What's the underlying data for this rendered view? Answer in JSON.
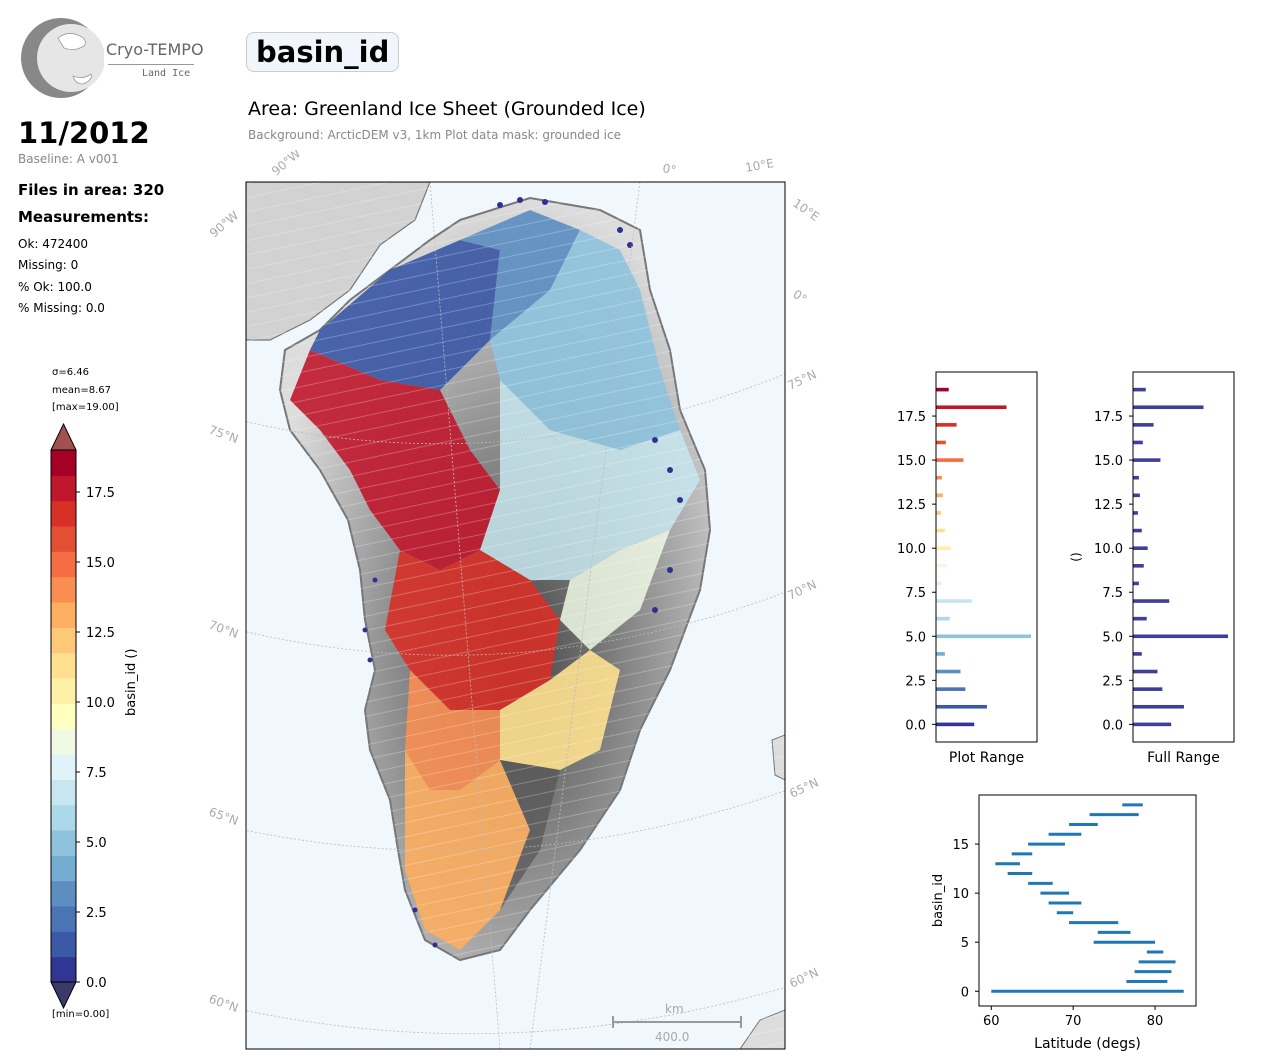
{
  "header": {
    "logo_text": "Cryo-TEMPO",
    "logo_sub": "Land Ice",
    "title": "basin_id",
    "area": "Area: Greenland Ice Sheet (Grounded Ice)",
    "background_note": "Background: ArcticDEM v3, 1km   Plot data mask: grounded ice"
  },
  "stats": {
    "period": "11/2012",
    "baseline": "Baseline: A v001",
    "files": "Files in area: 320",
    "measurements_label": "Measurements:",
    "ok": "Ok: 472400",
    "missing": "Missing: 0",
    "pct_ok": "% Ok: 100.0",
    "pct_missing": "% Missing: 0.0"
  },
  "colorbar": {
    "sigma": "σ=6.46",
    "mean": "mean=8.67",
    "max": "[max=19.00]",
    "min": "[min=0.00]",
    "label": "basin_id ()",
    "ticks": [
      "0.0",
      "2.5",
      "5.0",
      "7.5",
      "10.0",
      "12.5",
      "15.0",
      "17.5"
    ],
    "colors": [
      "#313695",
      "#3c59a6",
      "#4a74b4",
      "#5d8ec1",
      "#74add1",
      "#8fc3dd",
      "#abd9e9",
      "#c8e6f0",
      "#e0f3f8",
      "#eff9e4",
      "#ffffbf",
      "#fef0a7",
      "#fee090",
      "#fdc877",
      "#fdae61",
      "#f88e52",
      "#f46d43",
      "#e34f33",
      "#d73027",
      "#c0172c",
      "#a50026"
    ],
    "over_color": "#a25050",
    "under_color": "#3a3a6a"
  },
  "map": {
    "lat_labels": [
      "75°N",
      "70°N",
      "65°N",
      "60°N"
    ],
    "right_labels": [
      "75°N",
      "70°N",
      "65°N",
      "60°N"
    ],
    "top_labels": [
      "90°W",
      "90°W",
      "0°",
      "10°E"
    ],
    "side_labels": [
      "10°E",
      "0°"
    ],
    "scale_unit": "km",
    "scale_value": "400.0"
  },
  "chart_data": [
    {
      "type": "bar",
      "orientation": "horizontal",
      "title": "",
      "xlabel": "Plot Range",
      "ylabel": "",
      "ylim": [
        -1,
        20
      ],
      "ticks": [
        "0.0",
        "2.5",
        "5.0",
        "7.5",
        "10.0",
        "12.5",
        "15.0",
        "17.5"
      ],
      "categories": [
        0,
        1,
        2,
        3,
        4,
        5,
        6,
        7,
        8,
        9,
        10,
        11,
        12,
        13,
        14,
        15,
        16,
        17,
        18,
        19
      ],
      "values": [
        39,
        52,
        30,
        25,
        9,
        97,
        14,
        37,
        6,
        11,
        15,
        9,
        5,
        7,
        6,
        28,
        10,
        21,
        72,
        13
      ]
    },
    {
      "type": "bar",
      "orientation": "horizontal",
      "title": "",
      "xlabel": "Full Range",
      "ylabel": "()",
      "ylim": [
        -1,
        20
      ],
      "ticks": [
        "0.0",
        "2.5",
        "5.0",
        "7.5",
        "10.0",
        "12.5",
        "15.0",
        "17.5"
      ],
      "categories": [
        0,
        1,
        2,
        3,
        4,
        5,
        6,
        7,
        8,
        9,
        10,
        11,
        12,
        13,
        14,
        15,
        16,
        17,
        18,
        19
      ],
      "values": [
        39,
        52,
        30,
        25,
        9,
        97,
        14,
        37,
        6,
        11,
        15,
        9,
        5,
        7,
        6,
        28,
        10,
        21,
        72,
        13
      ]
    },
    {
      "type": "scatter",
      "title": "",
      "xlabel": "Latitude (degs)",
      "ylabel": "basin_id",
      "xlim": [
        58.5,
        85
      ],
      "ylim": [
        -1.5,
        20
      ],
      "xticks": [
        "60",
        "70",
        "80"
      ],
      "yticks": [
        "0",
        "5",
        "10",
        "15"
      ],
      "ranges": [
        {
          "id": 0,
          "lat_min": 60,
          "lat_max": 83.5
        },
        {
          "id": 1,
          "lat_min": 76.5,
          "lat_max": 81.5
        },
        {
          "id": 2,
          "lat_min": 77.5,
          "lat_max": 82
        },
        {
          "id": 3,
          "lat_min": 78,
          "lat_max": 82.5
        },
        {
          "id": 4,
          "lat_min": 79,
          "lat_max": 81
        },
        {
          "id": 5,
          "lat_min": 72.5,
          "lat_max": 80
        },
        {
          "id": 6,
          "lat_min": 73,
          "lat_max": 77
        },
        {
          "id": 7,
          "lat_min": 69.5,
          "lat_max": 75.5
        },
        {
          "id": 8,
          "lat_min": 68,
          "lat_max": 70
        },
        {
          "id": 9,
          "lat_min": 67,
          "lat_max": 71
        },
        {
          "id": 10,
          "lat_min": 66,
          "lat_max": 69.5
        },
        {
          "id": 11,
          "lat_min": 64.5,
          "lat_max": 67.5
        },
        {
          "id": 12,
          "lat_min": 62,
          "lat_max": 65
        },
        {
          "id": 13,
          "lat_min": 60.5,
          "lat_max": 63.5
        },
        {
          "id": 14,
          "lat_min": 62.5,
          "lat_max": 65
        },
        {
          "id": 15,
          "lat_min": 64.5,
          "lat_max": 69
        },
        {
          "id": 16,
          "lat_min": 67,
          "lat_max": 71
        },
        {
          "id": 17,
          "lat_min": 69.5,
          "lat_max": 73
        },
        {
          "id": 18,
          "lat_min": 72,
          "lat_max": 78
        },
        {
          "id": 19,
          "lat_min": 76,
          "lat_max": 78.5
        }
      ]
    }
  ]
}
